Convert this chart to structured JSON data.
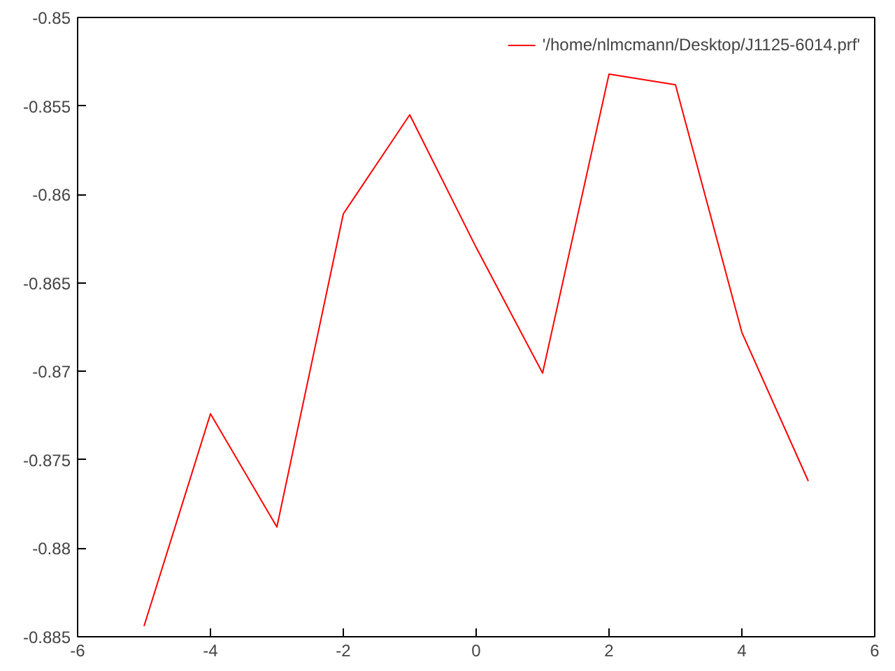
{
  "chart_data": {
    "type": "line",
    "x": [
      -5,
      -4,
      -3,
      -2,
      -1,
      0,
      1,
      2,
      3,
      4,
      5
    ],
    "series": [
      {
        "name": "'/home/nlmcmann/Desktop/J1125-6014.prf'",
        "color": "#ff0000",
        "values": [
          -0.8844,
          -0.8724,
          -0.8788,
          -0.8611,
          -0.8555,
          -0.863,
          -0.8701,
          -0.8532,
          -0.8538,
          -0.8678,
          -0.8762
        ]
      }
    ],
    "xlim": [
      -6,
      6
    ],
    "xticks": [
      -6,
      -4,
      -2,
      0,
      2,
      4,
      6
    ],
    "ylim": [
      -0.885,
      -0.85
    ],
    "yticks": [
      -0.885,
      -0.88,
      -0.875,
      -0.87,
      -0.865,
      -0.86,
      -0.855,
      -0.85
    ],
    "grid": false,
    "legend": "top right",
    "marker": "none",
    "line_style": "solid"
  }
}
